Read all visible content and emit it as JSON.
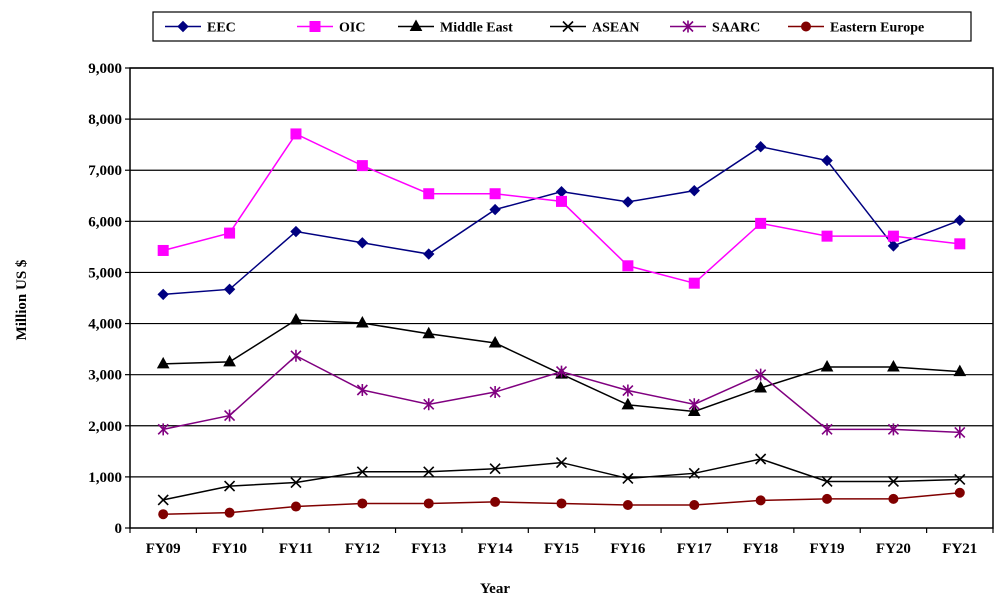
{
  "chart_data": {
    "type": "line",
    "categories": [
      "FY09",
      "FY10",
      "FY11",
      "FY12",
      "FY13",
      "FY14",
      "FY15",
      "FY16",
      "FY17",
      "FY18",
      "FY19",
      "FY20",
      "FY21"
    ],
    "xlabel": "Year",
    "ylabel": "Million US $",
    "ylim": [
      0,
      9000
    ],
    "yticks": [
      0,
      1000,
      2000,
      3000,
      4000,
      5000,
      6000,
      7000,
      8000,
      9000
    ],
    "ytick_labels": [
      "0",
      "1,000",
      "2,000",
      "3,000",
      "4,000",
      "5,000",
      "6,000",
      "7,000",
      "8,000",
      "9,000"
    ],
    "grid": "horizontal",
    "legend_position": "top",
    "series": [
      {
        "name": "EEC",
        "color": "#000080",
        "marker": "diamond",
        "values": [
          4570,
          4670,
          5800,
          5580,
          5360,
          6230,
          6580,
          6380,
          6600,
          7460,
          7190,
          5520,
          6020
        ]
      },
      {
        "name": "OIC",
        "color": "#ff00ff",
        "marker": "square",
        "values": [
          5430,
          5770,
          7710,
          7090,
          6540,
          6540,
          6390,
          5130,
          4790,
          5960,
          5710,
          5710,
          5560
        ]
      },
      {
        "name": "Middle East",
        "color": "#000000",
        "marker": "triangle",
        "values": [
          3210,
          3250,
          4070,
          4010,
          3800,
          3620,
          3010,
          2410,
          2280,
          2740,
          3150,
          3150,
          3060
        ]
      },
      {
        "name": "ASEAN",
        "color": "#000000",
        "marker": "x",
        "values": [
          550,
          820,
          890,
          1100,
          1100,
          1160,
          1280,
          970,
          1070,
          1350,
          910,
          910,
          950
        ]
      },
      {
        "name": "SAARC",
        "color": "#800080",
        "marker": "star",
        "values": [
          1930,
          2200,
          3370,
          2700,
          2420,
          2660,
          3060,
          2690,
          2420,
          3000,
          1930,
          1930,
          1870
        ]
      },
      {
        "name": "Eastern Europe",
        "color": "#800000",
        "marker": "circle",
        "values": [
          270,
          300,
          420,
          480,
          480,
          510,
          480,
          450,
          450,
          540,
          570,
          570,
          690
        ]
      }
    ]
  }
}
